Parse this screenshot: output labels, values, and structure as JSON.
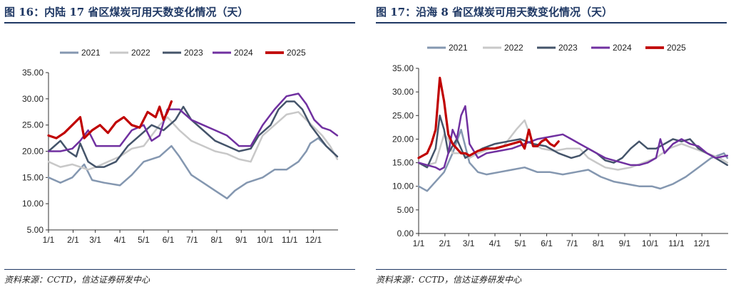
{
  "source_text": "资料来源：CCTD，信达证券研发中心",
  "series_colors": {
    "2021": "#8497b0",
    "2022": "#c8c8c8",
    "2023": "#44546a",
    "2024": "#7030a0",
    "2025": "#c00000"
  },
  "chart_data": [
    {
      "type": "line",
      "title": "图 16：内陆 17 省区煤炭可用天数变化情况（天）",
      "x_ticks": [
        "1/1",
        "2/1",
        "3/1",
        "4/1",
        "5/1",
        "6/1",
        "7/1",
        "8/1",
        "9/1",
        "10/1",
        "11/1",
        "12/1"
      ],
      "ylim": [
        5,
        35
      ],
      "y_ticks": [
        "5.00",
        "10.00",
        "15.00",
        "20.00",
        "25.00",
        "30.00",
        "35.00"
      ],
      "legend_position": "top",
      "x_unit": "day-of-year",
      "series": [
        {
          "name": "2021",
          "x": [
            0,
            15,
            30,
            45,
            55,
            70,
            90,
            105,
            120,
            140,
            155,
            165,
            180,
            195,
            210,
            225,
            235,
            250,
            270,
            285,
            300,
            315,
            325,
            330,
            340,
            350,
            364
          ],
          "y": [
            15,
            14,
            15,
            17.5,
            14.5,
            14,
            13.5,
            15.5,
            18,
            19,
            21,
            19,
            15.5,
            14,
            12.5,
            11,
            12.5,
            14,
            15,
            16.5,
            16.5,
            18,
            20,
            21.5,
            22.5,
            21,
            19
          ]
        },
        {
          "name": "2022",
          "x": [
            0,
            15,
            30,
            40,
            50,
            60,
            75,
            90,
            105,
            120,
            130,
            140,
            150,
            165,
            180,
            195,
            210,
            225,
            240,
            255,
            270,
            285,
            300,
            315,
            325,
            335,
            345,
            355,
            364
          ],
          "y": [
            18,
            17,
            17.5,
            17,
            16.5,
            17,
            18,
            19,
            20.5,
            21,
            23,
            25,
            26.5,
            24,
            22,
            21,
            20,
            19.5,
            18.5,
            18,
            23,
            25,
            27,
            27.5,
            26,
            24.5,
            23,
            21,
            18.5
          ]
        },
        {
          "name": "2023",
          "x": [
            0,
            15,
            25,
            35,
            40,
            50,
            60,
            70,
            85,
            100,
            115,
            130,
            145,
            160,
            170,
            180,
            195,
            210,
            225,
            240,
            255,
            265,
            280,
            290,
            300,
            310,
            320,
            330,
            340,
            350,
            364
          ],
          "y": [
            20,
            22,
            20,
            19,
            21.5,
            18,
            17,
            17,
            18,
            21,
            23,
            25,
            24,
            26,
            28.5,
            26,
            24,
            22,
            21,
            20,
            20.5,
            23,
            25,
            28,
            29.5,
            29.5,
            28,
            25,
            23,
            21,
            19
          ]
        },
        {
          "name": "2024",
          "x": [
            0,
            15,
            30,
            40,
            50,
            60,
            75,
            90,
            105,
            120,
            130,
            140,
            150,
            165,
            180,
            195,
            210,
            225,
            240,
            255,
            270,
            285,
            300,
            315,
            325,
            335,
            345,
            355,
            364
          ],
          "y": [
            20,
            20,
            20.5,
            22,
            24,
            21,
            21,
            21,
            24,
            25,
            22,
            23,
            28,
            28,
            26,
            25,
            24,
            23,
            21,
            21,
            25,
            28,
            30.5,
            31,
            29,
            26,
            24.5,
            24,
            23
          ]
        },
        {
          "name": "2025",
          "x": [
            0,
            10,
            20,
            30,
            40,
            45,
            55,
            65,
            75,
            85,
            95,
            105,
            115,
            125,
            135,
            140,
            145,
            150,
            155
          ],
          "y": [
            23,
            22.5,
            23.5,
            25,
            26.5,
            22.5,
            24,
            25,
            23.5,
            25.5,
            26.5,
            25,
            24.5,
            27.5,
            26.5,
            28.5,
            26,
            27.5,
            29.5
          ]
        }
      ]
    },
    {
      "type": "line",
      "title": "图 17：沿海 8 省区煤炭可用天数变化情况（天）",
      "x_ticks": [
        "1/1",
        "2/1",
        "3/1",
        "4/1",
        "5/1",
        "6/1",
        "7/1",
        "8/1",
        "9/1",
        "10/1",
        "11/1",
        "12/1"
      ],
      "ylim": [
        0,
        35
      ],
      "y_ticks": [
        "0.00",
        "5.00",
        "10.00",
        "15.00",
        "20.00",
        "25.00",
        "30.00",
        "35.00"
      ],
      "legend_position": "top",
      "x_unit": "day-of-year",
      "series": [
        {
          "name": "2021",
          "x": [
            0,
            10,
            20,
            30,
            40,
            50,
            60,
            70,
            80,
            95,
            110,
            125,
            140,
            155,
            170,
            185,
            200,
            215,
            230,
            245,
            260,
            275,
            285,
            300,
            315,
            330,
            345,
            360,
            364
          ],
          "y": [
            10,
            9,
            11,
            13,
            17,
            22,
            15,
            13,
            12.5,
            13,
            13.5,
            14,
            13,
            13,
            12.5,
            13,
            13.5,
            12,
            11,
            10.5,
            10,
            10,
            9.5,
            10.5,
            12,
            14,
            16,
            17,
            16
          ]
        },
        {
          "name": "2022",
          "x": [
            0,
            10,
            20,
            25,
            30,
            35,
            40,
            50,
            60,
            70,
            85,
            100,
            115,
            125,
            135,
            145,
            160,
            175,
            190,
            200,
            210,
            220,
            235,
            250,
            265,
            280,
            295,
            310,
            325,
            340,
            355,
            364
          ],
          "y": [
            15,
            14.5,
            15,
            18,
            21,
            20,
            17,
            17,
            16,
            17,
            18,
            18.5,
            22,
            24,
            19,
            18,
            17.5,
            18,
            18,
            16,
            15,
            14,
            13.5,
            14,
            15,
            16,
            18,
            19,
            18,
            17,
            16,
            15
          ]
        },
        {
          "name": "2023",
          "x": [
            0,
            10,
            20,
            25,
            30,
            35,
            45,
            55,
            65,
            75,
            90,
            105,
            120,
            135,
            150,
            165,
            180,
            190,
            200,
            210,
            220,
            230,
            240,
            250,
            260,
            270,
            280,
            290,
            300,
            310,
            320,
            330,
            340,
            350,
            364
          ],
          "y": [
            15,
            14,
            18,
            25,
            22,
            17,
            20,
            16,
            17,
            18,
            19,
            19.5,
            20,
            19,
            18.5,
            17,
            16,
            16.5,
            18,
            17,
            15.5,
            15,
            16,
            18,
            19.5,
            18,
            18,
            19,
            20,
            19.5,
            20,
            18,
            17,
            16,
            14.5
          ]
        },
        {
          "name": "2024",
          "x": [
            0,
            10,
            20,
            25,
            30,
            35,
            40,
            45,
            50,
            55,
            60,
            70,
            80,
            95,
            110,
            125,
            140,
            155,
            170,
            180,
            190,
            200,
            210,
            220,
            230,
            240,
            250,
            260,
            270,
            280,
            285,
            290,
            300,
            310,
            320,
            330,
            340,
            350,
            364
          ],
          "y": [
            15,
            14.5,
            14,
            13.5,
            14,
            17,
            22,
            20,
            25,
            27,
            19,
            16,
            17,
            17.5,
            18,
            19,
            20,
            20.5,
            21,
            20,
            19,
            18,
            17,
            16,
            15.5,
            15,
            14.5,
            14.5,
            15,
            16,
            20,
            17,
            19,
            20,
            19,
            18.5,
            17,
            16,
            16.5
          ]
        },
        {
          "name": "2025",
          "x": [
            0,
            5,
            10,
            15,
            20,
            25,
            30,
            35,
            40,
            45,
            50,
            55,
            60,
            70,
            80,
            90,
            100,
            110,
            120,
            125,
            130,
            135,
            140,
            145,
            150,
            155,
            160,
            165
          ],
          "y": [
            16,
            16.5,
            17,
            19,
            22,
            33,
            28,
            21,
            19,
            18,
            17,
            17,
            16.5,
            17.5,
            18,
            18,
            18.5,
            19,
            19.5,
            18,
            22,
            18.5,
            18.5,
            19.5,
            20,
            19,
            18.5,
            19.5
          ]
        }
      ]
    }
  ]
}
